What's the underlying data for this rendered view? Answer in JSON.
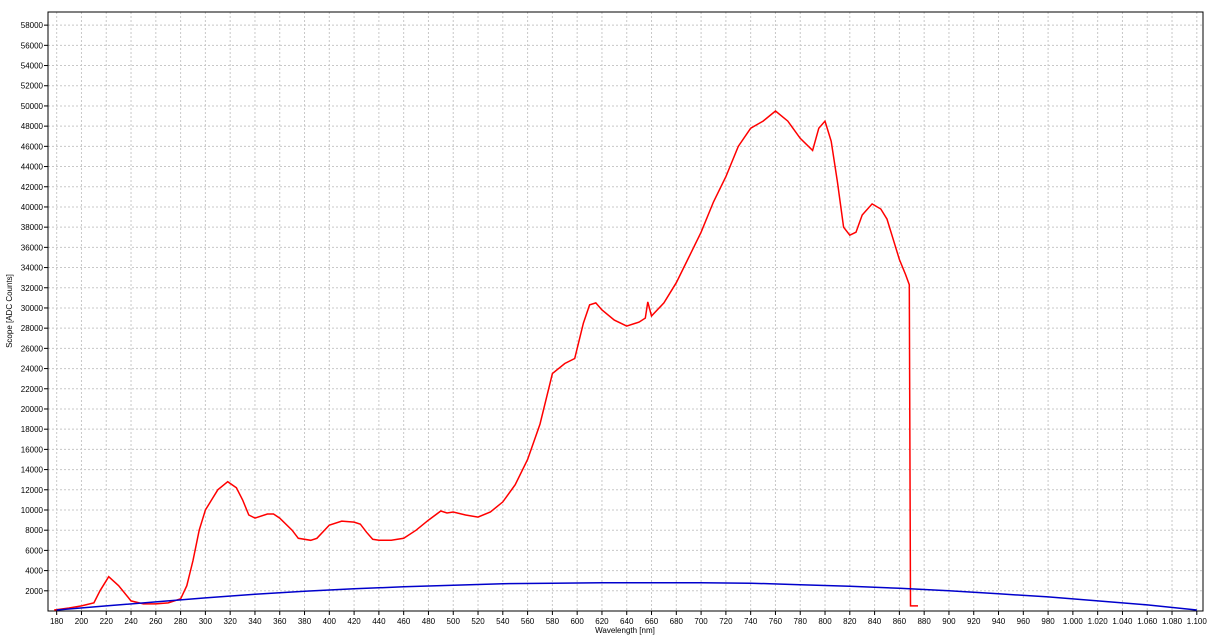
{
  "chart_data": {
    "type": "line",
    "xlabel": "Wavelength [nm]",
    "ylabel": "Scope [ADC Counts]",
    "xlim": [
      173,
      1105
    ],
    "ylim": [
      0,
      59300
    ],
    "grid": true,
    "xticks": [
      180,
      200,
      220,
      240,
      260,
      280,
      300,
      320,
      340,
      360,
      380,
      400,
      420,
      440,
      460,
      480,
      500,
      520,
      540,
      560,
      580,
      600,
      620,
      640,
      660,
      680,
      700,
      720,
      740,
      760,
      780,
      800,
      820,
      840,
      860,
      880,
      900,
      920,
      940,
      960,
      980,
      {
        "value": 1000,
        "label": "1.000"
      },
      {
        "value": 1020,
        "label": "1.020"
      },
      {
        "value": 1040,
        "label": "1.040"
      },
      {
        "value": 1060,
        "label": "1.060"
      },
      {
        "value": 1080,
        "label": "1.080"
      },
      {
        "value": 1100,
        "label": "1.100"
      }
    ],
    "yticks": [
      2000,
      4000,
      6000,
      8000,
      10000,
      12000,
      14000,
      16000,
      18000,
      20000,
      22000,
      24000,
      26000,
      28000,
      30000,
      32000,
      34000,
      36000,
      38000,
      40000,
      42000,
      44000,
      46000,
      48000,
      50000,
      52000,
      54000,
      56000,
      58000
    ],
    "series": [
      {
        "color": "#ff0000",
        "x": [
          178,
          190,
          200,
          210,
          215,
          222,
          230,
          240,
          250,
          260,
          270,
          280,
          285,
          290,
          295,
          300,
          305,
          310,
          318,
          325,
          330,
          335,
          340,
          350,
          355,
          360,
          370,
          375,
          385,
          390,
          400,
          410,
          420,
          425,
          430,
          435,
          440,
          450,
          460,
          470,
          480,
          490,
          495,
          500,
          510,
          520,
          530,
          540,
          550,
          560,
          570,
          580,
          590,
          598,
          605,
          610,
          615,
          620,
          630,
          640,
          650,
          655,
          657,
          660,
          670,
          680,
          690,
          700,
          710,
          720,
          730,
          740,
          750,
          760,
          770,
          780,
          790,
          795,
          800,
          805,
          810,
          815,
          820,
          825,
          830,
          838,
          845,
          850,
          855,
          860,
          865,
          868,
          869,
          875
        ],
        "values": [
          100,
          300,
          500,
          800,
          2000,
          3400,
          2500,
          1000,
          700,
          700,
          800,
          1200,
          2500,
          5000,
          8000,
          10000,
          11000,
          12000,
          12800,
          12200,
          11000,
          9500,
          9200,
          9600,
          9600,
          9200,
          8000,
          7200,
          7000,
          7200,
          8500,
          8900,
          8800,
          8600,
          7800,
          7100,
          7000,
          7000,
          7200,
          8000,
          9000,
          9900,
          9700,
          9800,
          9500,
          9300,
          9800,
          10800,
          12500,
          15000,
          18500,
          23500,
          24500,
          25000,
          28500,
          30300,
          30500,
          29800,
          28800,
          28200,
          28600,
          29000,
          30600,
          29200,
          30500,
          32500,
          35000,
          37500,
          40500,
          43000,
          46000,
          47800,
          48500,
          49500,
          48500,
          46800,
          45600,
          47800,
          48500,
          46500,
          42500,
          38000,
          37200,
          37500,
          39200,
          40300,
          39800,
          38800,
          36800,
          34800,
          33300,
          32300,
          500,
          500
        ]
      },
      {
        "color": "#0000cc",
        "x": [
          180,
          220,
          260,
          300,
          340,
          380,
          420,
          460,
          500,
          540,
          580,
          620,
          660,
          700,
          740,
          780,
          820,
          860,
          900,
          940,
          980,
          1020,
          1060,
          1100
        ],
        "values": [
          100,
          500,
          900,
          1300,
          1650,
          1950,
          2200,
          2400,
          2550,
          2700,
          2750,
          2800,
          2800,
          2800,
          2750,
          2600,
          2450,
          2250,
          2000,
          1700,
          1400,
          1000,
          600,
          100
        ]
      }
    ]
  }
}
